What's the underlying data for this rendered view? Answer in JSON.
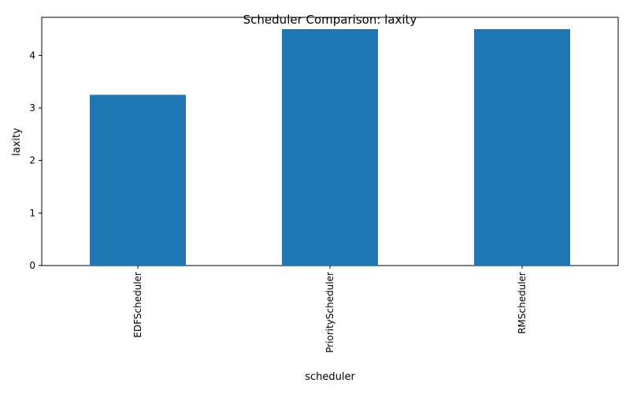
{
  "chart_data": {
    "type": "bar",
    "title": "Scheduler Comparison: laxity",
    "xlabel": "scheduler",
    "ylabel": "laxity",
    "categories": [
      "EDFScheduler",
      "PriorityScheduler",
      "RMScheduler"
    ],
    "values": [
      3.25,
      4.5,
      4.5
    ],
    "ylim": [
      0,
      4.725
    ],
    "yticks": [
      0,
      1,
      2,
      3,
      4
    ],
    "bar_color": "#1f77b4",
    "grid": false,
    "legend": "none"
  }
}
